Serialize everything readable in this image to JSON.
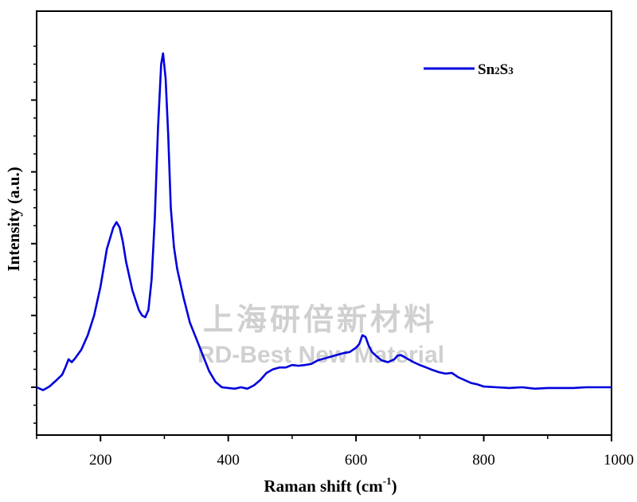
{
  "chart_data": {
    "type": "line",
    "title": "",
    "xlabel": "Raman shift (cm",
    "xlabel_superscript": "-1",
    "xlabel_close": ")",
    "ylabel": "Intensity (a.u.)",
    "xlim": [
      100,
      1000
    ],
    "ylim": [
      -100,
      1000
    ],
    "xticks": [
      200,
      400,
      600,
      800,
      1000
    ],
    "yticks_labeled": false,
    "grid": false,
    "legend": "top-right",
    "series": [
      {
        "name": "Sn2S3",
        "name_parts": [
          "Sn",
          "2",
          "S",
          "3"
        ],
        "color": "#0000dd",
        "x": [
          100,
          110,
          120,
          130,
          140,
          145,
          150,
          155,
          160,
          170,
          180,
          190,
          200,
          210,
          220,
          225,
          230,
          235,
          240,
          250,
          260,
          265,
          270,
          275,
          280,
          285,
          290,
          295,
          298,
          302,
          306,
          310,
          315,
          320,
          330,
          340,
          350,
          360,
          370,
          380,
          390,
          400,
          410,
          420,
          430,
          440,
          450,
          460,
          470,
          480,
          490,
          500,
          510,
          520,
          530,
          540,
          550,
          560,
          570,
          580,
          590,
          600,
          605,
          610,
          615,
          620,
          625,
          630,
          640,
          650,
          660,
          665,
          670,
          680,
          690,
          700,
          710,
          720,
          730,
          740,
          750,
          760,
          770,
          780,
          790,
          800,
          820,
          840,
          860,
          880,
          900,
          920,
          940,
          960,
          980,
          1000
        ],
        "y": [
          0,
          -8,
          2,
          18,
          35,
          55,
          78,
          70,
          80,
          105,
          145,
          200,
          280,
          385,
          445,
          460,
          445,
          405,
          350,
          270,
          215,
          200,
          195,
          215,
          300,
          470,
          720,
          900,
          930,
          860,
          700,
          500,
          390,
          330,
          250,
          180,
          135,
          90,
          45,
          15,
          0,
          -2,
          -4,
          0,
          -4,
          5,
          20,
          40,
          50,
          55,
          55,
          62,
          60,
          62,
          65,
          75,
          80,
          85,
          90,
          95,
          98,
          110,
          120,
          145,
          140,
          115,
          98,
          90,
          75,
          70,
          78,
          88,
          90,
          80,
          70,
          62,
          55,
          48,
          42,
          38,
          40,
          28,
          20,
          12,
          8,
          2,
          0,
          -2,
          0,
          -4,
          -2,
          -2,
          -2,
          0,
          0,
          0
        ]
      }
    ]
  },
  "watermark": {
    "chinese": "上海研倍新材料",
    "english": "RD-Best New Material"
  }
}
